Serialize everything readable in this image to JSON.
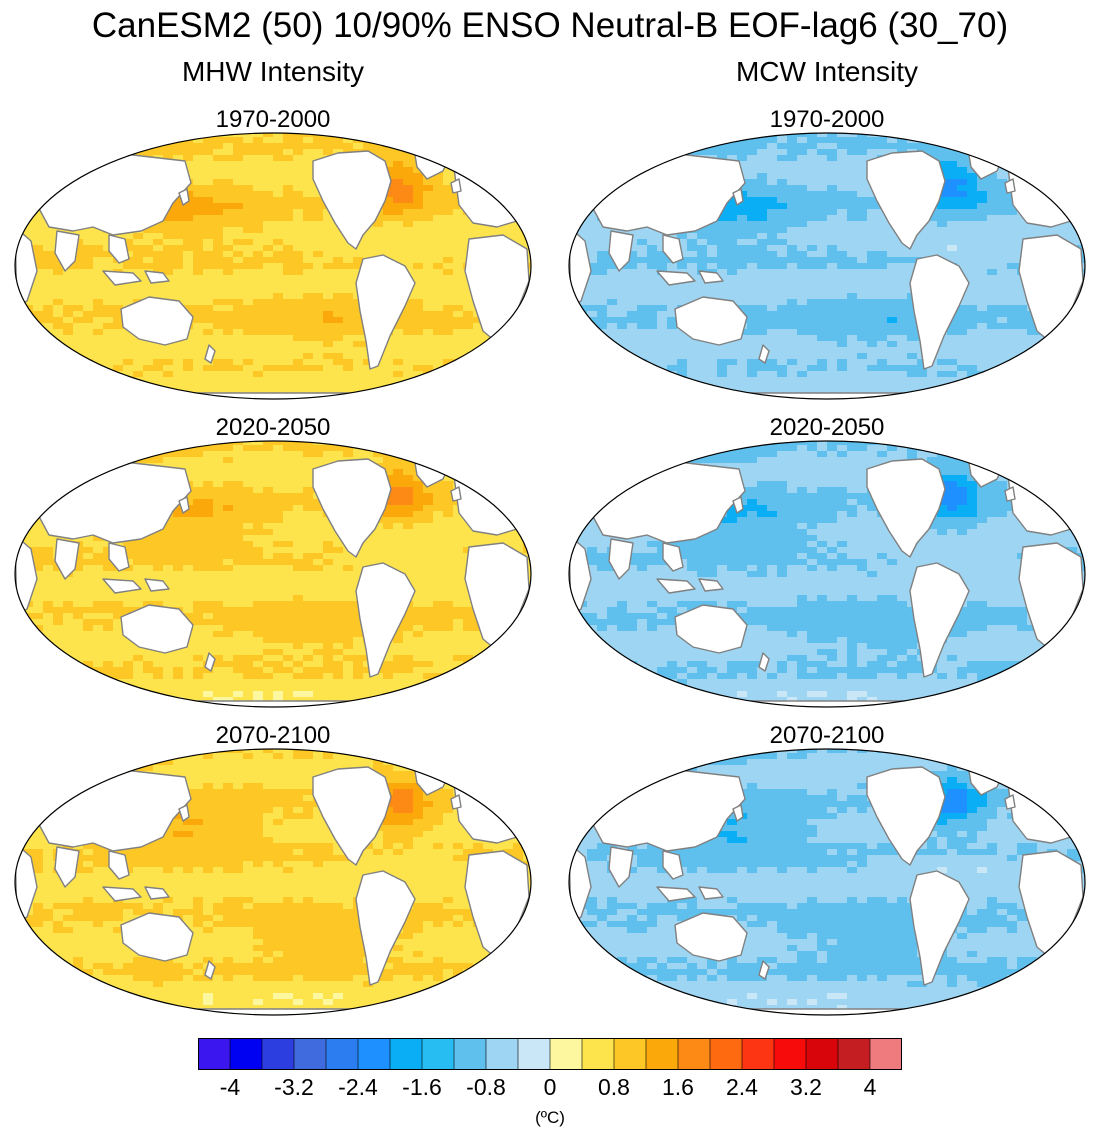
{
  "title": "CanESM2 (50) 10/90% ENSO Neutral-B EOF-lag6 (30_70)",
  "columns": [
    {
      "label": "MHW Intensity",
      "palette": "warm",
      "panels": [
        "1970-2000",
        "2020-2050",
        "2070-2100"
      ]
    },
    {
      "label": "MCW Intensity",
      "palette": "cool",
      "panels": [
        "1970-2000",
        "2020-2050",
        "2070-2100"
      ]
    }
  ],
  "colorbar": {
    "colors": [
      "#3b16ee",
      "#0000f2",
      "#2d3ee0",
      "#3f6bdf",
      "#2c7ef0",
      "#1e90ff",
      "#0aaef5",
      "#27bdf2",
      "#5fc0ee",
      "#9dd5f2",
      "#c9e7f7",
      "#fdf8a0",
      "#fde44c",
      "#fdc825",
      "#fba90a",
      "#fc8a15",
      "#fd6a10",
      "#fd3512",
      "#f70b0b",
      "#d8060b",
      "#c41e22",
      "#ef7b7f"
    ],
    "ticks": [
      "-4",
      "-3.2",
      "-2.4",
      "-1.6",
      "-0.8",
      "0",
      "0.8",
      "1.6",
      "2.4",
      "3.2",
      "4"
    ],
    "units": "(ºC)"
  }
}
